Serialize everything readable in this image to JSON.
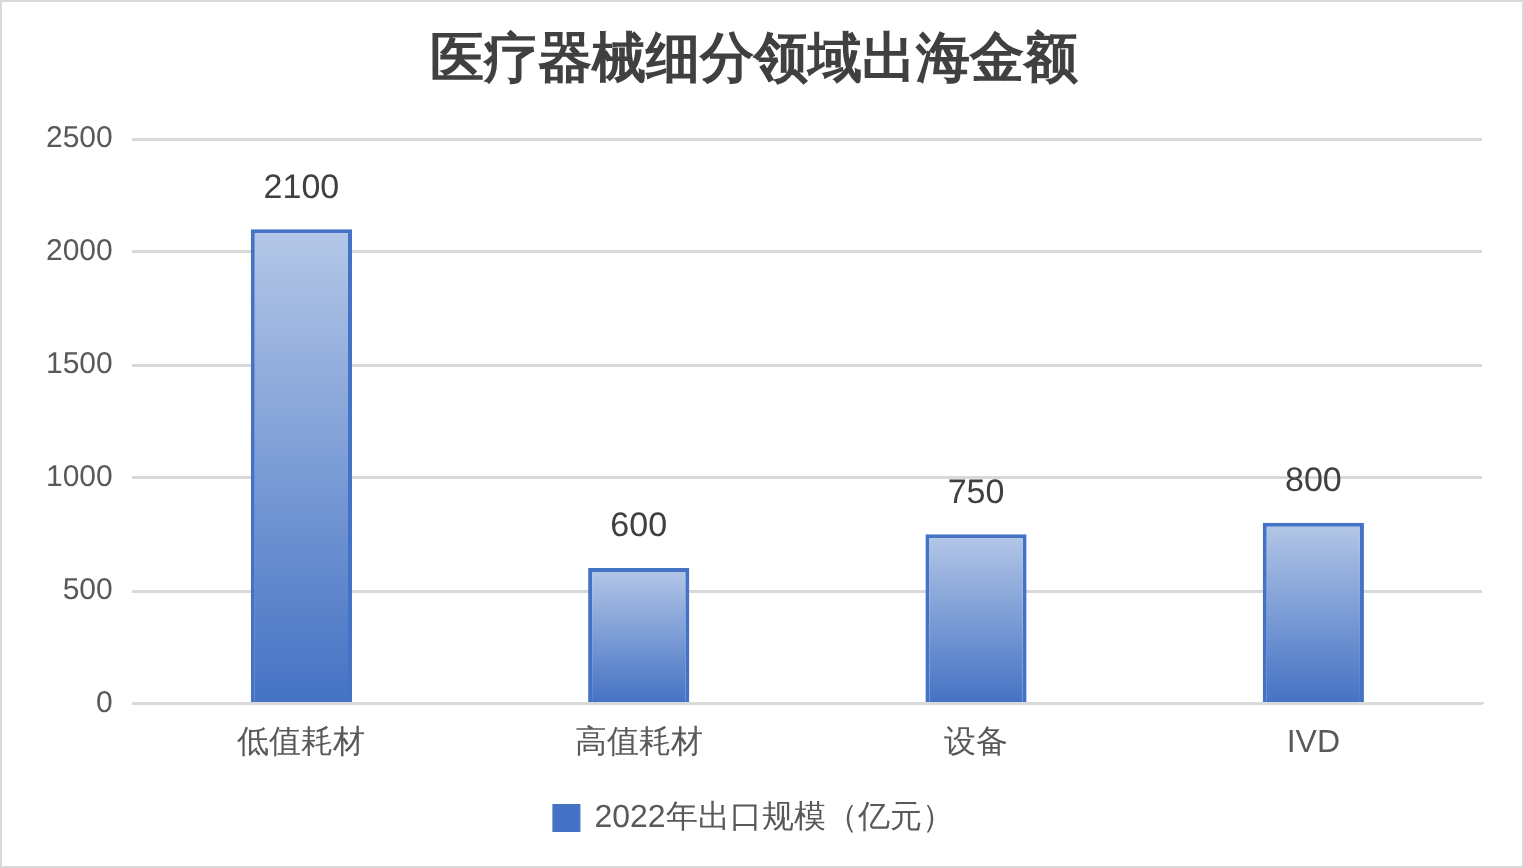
{
  "chart_data": {
    "type": "bar",
    "title": "医疗器械细分领域出海金额",
    "categories": [
      "低值耗材",
      "高值耗材",
      "设备",
      "IVD"
    ],
    "series": [
      {
        "name": "2022年出口规模（亿元）",
        "color": "#4472c4",
        "values": [
          2100,
          600,
          750,
          800
        ]
      }
    ],
    "ylim": [
      0,
      2500
    ],
    "yticks": [
      0,
      500,
      1000,
      1500,
      2000,
      2500
    ],
    "grid": "y",
    "data_labels": true,
    "legend": "bottom"
  }
}
